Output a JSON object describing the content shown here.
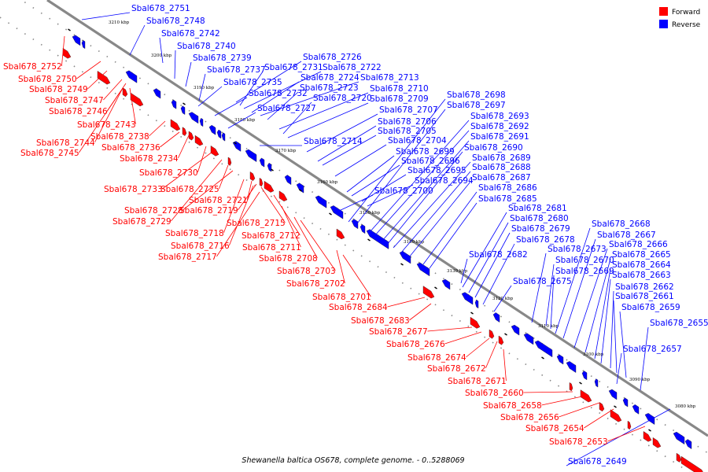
{
  "caption": "Shewanella baltica OS678, complete genome. - 0..5288069",
  "legend": {
    "forward": {
      "label": "Forward",
      "color": "#ff0000"
    },
    "reverse": {
      "label": "Reverse",
      "color": "#0000ff"
    }
  },
  "ticks": [
    "3210 kbp",
    "3200 kbp",
    "3190 kbp",
    "3180 kbp",
    "3170 kbp",
    "3160 kbp",
    "3150 kbp",
    "3140 kbp",
    "3130 kbp",
    "3120 kbp",
    "3110 kbp",
    "3100 kbp",
    "3090 kbp",
    "3080 kbp"
  ],
  "reverse_labels": [
    "Sbal678_2751",
    "Sbal678_2748",
    "Sbal678_2742",
    "Sbal678_2740",
    "Sbal678_2739",
    "Sbal678_2737",
    "Sbal678_2726",
    "Sbal678_2731",
    "Sbal678_2722",
    "Sbal678_2724",
    "Sbal678_2713",
    "Sbal678_2735",
    "Sbal678_2723",
    "Sbal678_2710",
    "Sbal678_2732",
    "Sbal678_2720",
    "Sbal678_2709",
    "Sbal678_2698",
    "Sbal678_2727",
    "Sbal678_2707",
    "Sbal678_2697",
    "Sbal678_2706",
    "Sbal678_2693",
    "Sbal678_2705",
    "Sbal678_2692",
    "Sbal678_2714",
    "Sbal678_2704",
    "Sbal678_2691",
    "Sbal678_2699",
    "Sbal678_2690",
    "Sbal678_2696",
    "Sbal678_2689",
    "Sbal678_2695",
    "Sbal678_2688",
    "Sbal678_2694",
    "Sbal678_2687",
    "Sbal678_2700",
    "Sbal678_2686",
    "Sbal678_2685",
    "Sbal678_2681",
    "Sbal678_2680",
    "Sbal678_2679",
    "Sbal678_2668",
    "Sbal678_2678",
    "Sbal678_2667",
    "Sbal678_2682",
    "Sbal678_2673",
    "Sbal678_2666",
    "Sbal678_2670",
    "Sbal678_2665",
    "Sbal678_2669",
    "Sbal678_2664",
    "Sbal678_2675",
    "Sbal678_2663",
    "Sbal678_2662",
    "Sbal678_2661",
    "Sbal678_2659",
    "Sbal678_2655",
    "Sbal678_2657",
    "Sbal678_2649"
  ],
  "forward_labels": [
    "Sbal678_2752",
    "Sbal678_2750",
    "Sbal678_2749",
    "Sbal678_2747",
    "Sbal678_2746",
    "Sbal678_2743",
    "Sbal678_2738",
    "Sbal678_2744",
    "Sbal678_2736",
    "Sbal678_2745",
    "Sbal678_2734",
    "Sbal678_2730",
    "Sbal678_2733",
    "Sbal678_2725",
    "Sbal678_2721",
    "Sbal678_2728",
    "Sbal678_2719",
    "Sbal678_2729",
    "Sbal678_2715",
    "Sbal678_2718",
    "Sbal678_2712",
    "Sbal678_2716",
    "Sbal678_2711",
    "Sbal678_2717",
    "Sbal678_2708",
    "Sbal678_2703",
    "Sbal678_2702",
    "Sbal678_2701",
    "Sbal678_2684",
    "Sbal678_2683",
    "Sbal678_2677",
    "Sbal678_2676",
    "Sbal678_2674",
    "Sbal678_2672",
    "Sbal678_2671",
    "Sbal678_2660",
    "Sbal678_2658",
    "Sbal678_2656",
    "Sbal678_2654",
    "Sbal678_2653"
  ]
}
